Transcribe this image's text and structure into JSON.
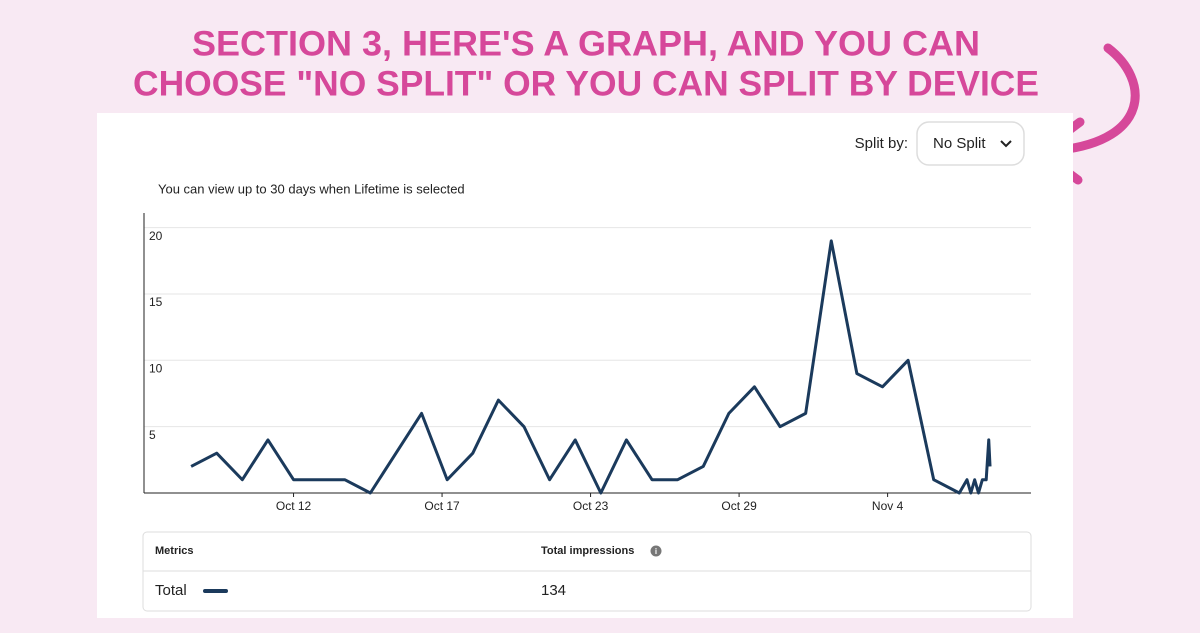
{
  "heading": [
    "SECTION 3, HERE'S A GRAPH, AND YOU CAN",
    "CHOOSE \"NO SPLIT\" OR YOU CAN SPLIT BY DEVICE"
  ],
  "split_label": "Split by:",
  "split_value": "No Split",
  "note": "You can view up to 30 days when Lifetime is selected",
  "chart_data": {
    "type": "line",
    "x": [
      0,
      1,
      2,
      3,
      4,
      5,
      6,
      7,
      8,
      9,
      10,
      11,
      12,
      13,
      14,
      15,
      16,
      17,
      18,
      19,
      20,
      21,
      22,
      23,
      24,
      25,
      26,
      27,
      28,
      29,
      30,
      30.3,
      30.45,
      30.6,
      30.75,
      30.9,
      31.05,
      31.15,
      31.2
    ],
    "series": [
      {
        "name": "Total",
        "color": "#1b3a5c",
        "values": [
          2,
          3,
          1,
          4,
          1,
          1,
          1,
          0,
          3,
          6,
          1,
          3,
          7,
          5,
          1,
          4,
          0,
          4,
          1,
          1,
          2,
          6,
          8,
          5,
          6,
          19,
          9,
          8,
          10,
          1,
          0,
          1,
          0,
          1,
          0,
          1,
          1,
          4,
          2
        ]
      }
    ],
    "xlim": [
      -1.84,
      32.8
    ],
    "xticks": [
      {
        "value": 4,
        "label": "Oct 12"
      },
      {
        "value": 9.8,
        "label": "Oct 17"
      },
      {
        "value": 15.6,
        "label": "Oct 23"
      },
      {
        "value": 21.4,
        "label": "Oct 29"
      },
      {
        "value": 27.2,
        "label": "Nov 4"
      }
    ],
    "ylim": [
      0,
      21.1
    ],
    "yticks": [
      5,
      10,
      15,
      20
    ],
    "grid": true
  },
  "table": {
    "headers": [
      "Metrics",
      "Total impressions"
    ],
    "rows": [
      [
        "Total",
        "134"
      ]
    ]
  }
}
